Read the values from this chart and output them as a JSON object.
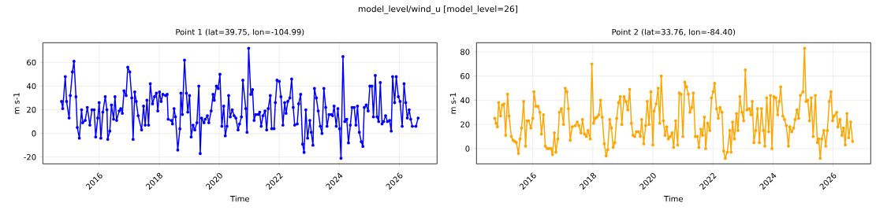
{
  "chart_data": [
    {
      "type": "line",
      "title": "Point 1 (lat=39.75, lon=-104.99)",
      "xlabel": "Time",
      "ylabel": "m s-1",
      "annotations": [
        "model_level/wind_u [model_level=26]"
      ],
      "grid": true,
      "marker": "circle",
      "line_style": "solid",
      "xlim": [
        "2014-02-15",
        "2027-04-05"
      ],
      "xticks": [
        "2016",
        "2018",
        "2020",
        "2022",
        "2024",
        "2026"
      ],
      "ylim": [
        -25.7,
        76.7
      ],
      "yticks": [
        -20,
        0,
        20,
        40,
        60
      ],
      "x": [
        "2014-10-01",
        "2014-10-15",
        "2014-11-15",
        "2014-12-01",
        "2015-01-01",
        "2015-01-15",
        "2015-02-10",
        "2015-03-01",
        "2015-03-25",
        "2015-04-10",
        "2015-05-05",
        "2015-06-01",
        "2015-06-15",
        "2015-07-15",
        "2015-08-10",
        "2015-09-10",
        "2015-10-05",
        "2015-11-01",
        "2015-11-20",
        "2015-12-15",
        "2016-01-01",
        "2016-01-22",
        "2016-02-15",
        "2016-03-15",
        "2016-04-05",
        "2016-04-15",
        "2016-05-10",
        "2016-05-30",
        "2016-06-25",
        "2016-07-12",
        "2016-08-01",
        "2016-09-01",
        "2016-09-20",
        "2016-10-10",
        "2016-10-30",
        "2016-11-25",
        "2016-12-15",
        "2017-01-08",
        "2017-02-02",
        "2017-02-18",
        "2017-03-10",
        "2017-03-28",
        "2017-04-20",
        "2017-06-01",
        "2017-06-25",
        "2017-07-15",
        "2017-08-05",
        "2017-08-25",
        "2017-09-15",
        "2017-10-12",
        "2017-11-05",
        "2017-11-28",
        "2017-12-15",
        "2018-01-05",
        "2018-01-25",
        "2018-02-15",
        "2018-03-20",
        "2018-04-08",
        "2018-04-20",
        "2018-05-28",
        "2018-06-12",
        "2018-07-01",
        "2018-07-18",
        "2018-08-15",
        "2018-09-10",
        "2018-09-22",
        "2018-10-10",
        "2018-11-05",
        "2018-11-28",
        "2018-12-15",
        "2019-01-05",
        "2019-01-25",
        "2019-02-17",
        "2019-03-10",
        "2019-04-05",
        "2019-04-28",
        "2019-05-15",
        "2019-06-01",
        "2019-06-30",
        "2019-07-15",
        "2019-08-10",
        "2019-08-28",
        "2019-09-25",
        "2019-10-18",
        "2019-11-02",
        "2019-11-28",
        "2019-12-20",
        "2020-01-10",
        "2020-02-02",
        "2020-02-25",
        "2020-03-15",
        "2020-04-05",
        "2020-04-25",
        "2020-05-15",
        "2020-06-08",
        "2020-07-01",
        "2020-07-22",
        "2020-08-18",
        "2020-09-05",
        "2020-09-28",
        "2020-10-15",
        "2020-11-20",
        "2020-12-05",
        "2020-12-25",
        "2021-01-20",
        "2021-02-10",
        "2021-03-01",
        "2021-03-20",
        "2021-04-20",
        "2021-05-08",
        "2021-05-26",
        "2021-06-18",
        "2021-07-12",
        "2021-08-01",
        "2021-08-20",
        "2021-09-14",
        "2021-10-01",
        "2021-10-30",
        "2021-11-15",
        "2021-12-05",
        "2022-01-01",
        "2022-01-22",
        "2022-02-15",
        "2022-03-08",
        "2022-03-25",
        "2022-04-15",
        "2022-05-10",
        "2022-06-01",
        "2022-06-20",
        "2022-07-08",
        "2022-08-08",
        "2022-08-25",
        "2022-09-18",
        "2022-10-12",
        "2022-10-30",
        "2022-11-20",
        "2022-12-12",
        "2023-01-08",
        "2023-01-25",
        "2023-02-15",
        "2023-03-05",
        "2023-03-28",
        "2023-04-20",
        "2023-05-15",
        "2023-06-05",
        "2023-06-28",
        "2023-07-20",
        "2023-08-05",
        "2023-08-30",
        "2023-09-25",
        "2023-10-12",
        "2023-10-30",
        "2023-11-25",
        "2023-12-15",
        "2024-01-05",
        "2024-01-22",
        "2024-02-15",
        "2024-03-08",
        "2024-04-01",
        "2024-04-22",
        "2024-05-15",
        "2024-06-05",
        "2024-07-01",
        "2024-07-22",
        "2024-08-10",
        "2024-09-01",
        "2024-09-25",
        "2024-10-15",
        "2024-11-01",
        "2024-11-25",
        "2024-12-18",
        "2025-01-08",
        "2025-02-02",
        "2025-02-20",
        "2025-03-15",
        "2025-04-05",
        "2025-04-25",
        "2025-05-15",
        "2025-06-05",
        "2025-06-25",
        "2025-07-18",
        "2025-08-10",
        "2025-09-05",
        "2025-09-25",
        "2025-10-12",
        "2025-11-05",
        "2025-11-25",
        "2025-12-20",
        "2026-01-10",
        "2026-02-05",
        "2026-02-28",
        "2026-03-20",
        "2026-04-08",
        "2026-05-01",
        "2026-05-20",
        "2026-06-08",
        "2026-07-22",
        "2026-08-18"
      ],
      "series": [
        {
          "color": "#0000ff",
          "values": [
            27,
            21,
            48,
            27,
            13,
            32,
            52,
            61,
            31,
            5,
            -4,
            20,
            9,
            11,
            22,
            7,
            20,
            20,
            -3,
            13,
            26,
            -4,
            18,
            31,
            20,
            -5,
            2,
            24,
            12,
            31,
            11,
            19,
            21,
            17,
            36,
            32,
            56,
            52,
            30,
            -5,
            35,
            27,
            15,
            3,
            23,
            7,
            28,
            7,
            42,
            25,
            31,
            34,
            19,
            35,
            27,
            33,
            32,
            33,
            12,
            11,
            8,
            21,
            14,
            -14,
            4,
            34,
            16,
            62,
            34,
            18,
            32,
            -3,
            7,
            3,
            9,
            40,
            -17,
            13,
            9,
            12,
            15,
            9,
            19,
            33,
            28,
            40,
            38,
            50,
            6,
            23,
            -2,
            6,
            32,
            14,
            20,
            15,
            13,
            3,
            8,
            14,
            45,
            21,
            1,
            72,
            33,
            37,
            11,
            16,
            16,
            18,
            6,
            15,
            19,
            3,
            21,
            32,
            4,
            4,
            26,
            45,
            44,
            31,
            7,
            26,
            17,
            27,
            30,
            46,
            22,
            7,
            8,
            25,
            33,
            -9,
            -16,
            20,
            -4,
            11,
            1,
            -10,
            38,
            30,
            19,
            6,
            0,
            38,
            22,
            6,
            16,
            16,
            15,
            23,
            6,
            21,
            4,
            -21,
            65,
            10,
            12,
            -8,
            7,
            22,
            22,
            7,
            23,
            1,
            -7,
            -11,
            22,
            24,
            19,
            40,
            40,
            14,
            49,
            14,
            10,
            43,
            8,
            10,
            15,
            10,
            11,
            2,
            48,
            26,
            48,
            31,
            27,
            6,
            42,
            26,
            13,
            20,
            12,
            6,
            6,
            13
          ]
        }
      ]
    },
    {
      "type": "line",
      "title": "Point 2 (lat=33.76, lon=-84.40)",
      "xlabel": "Time",
      "ylabel": "m s-1",
      "grid": true,
      "marker": "circle",
      "line_style": "solid",
      "xlim": [
        "2014-02-15",
        "2027-04-05"
      ],
      "xticks": [
        "2016",
        "2018",
        "2020",
        "2022",
        "2024",
        "2026"
      ],
      "ylim": [
        -12.6,
        87.6
      ],
      "yticks": [
        0,
        20,
        40,
        60,
        80
      ],
      "x": [
        "2014-09-25",
        "2014-10-12",
        "2014-10-28",
        "2014-11-12",
        "2014-12-05",
        "2014-12-25",
        "2015-01-15",
        "2015-02-05",
        "2015-02-28",
        "2015-03-18",
        "2015-04-15",
        "2015-05-05",
        "2015-05-25",
        "2015-06-15",
        "2015-07-10",
        "2015-07-30",
        "2015-08-18",
        "2015-09-12",
        "2015-10-05",
        "2015-10-22",
        "2015-11-12",
        "2015-12-08",
        "2016-01-01",
        "2016-01-15",
        "2016-02-08",
        "2016-03-05",
        "2016-03-28",
        "2016-04-15",
        "2016-05-10",
        "2016-06-01",
        "2016-06-25",
        "2016-07-15",
        "2016-08-10",
        "2016-08-28",
        "2016-09-20",
        "2016-10-08",
        "2016-11-02",
        "2016-11-20",
        "2016-12-15",
        "2017-01-10",
        "2017-01-30",
        "2017-02-20",
        "2017-03-10",
        "2017-04-01",
        "2017-04-25",
        "2017-06-01",
        "2017-06-25",
        "2017-07-15",
        "2017-08-10",
        "2017-08-28",
        "2017-09-22",
        "2017-10-15",
        "2017-11-02",
        "2017-12-01",
        "2017-12-20",
        "2018-01-10",
        "2018-01-30",
        "2018-02-20",
        "2018-03-15",
        "2018-04-05",
        "2018-04-25",
        "2018-05-20",
        "2018-06-12",
        "2018-07-01",
        "2018-07-25",
        "2018-08-15",
        "2018-09-05",
        "2018-09-25",
        "2018-10-18",
        "2018-11-10",
        "2018-12-01",
        "2018-12-20",
        "2019-01-15",
        "2019-02-08",
        "2019-03-02",
        "2019-03-25",
        "2019-04-15",
        "2019-05-05",
        "2019-05-25",
        "2019-06-15",
        "2019-07-10",
        "2019-08-02",
        "2019-08-18",
        "2019-09-12",
        "2019-10-05",
        "2019-10-25",
        "2019-11-15",
        "2019-12-08",
        "2020-01-01",
        "2020-01-15",
        "2020-02-10",
        "2020-03-05",
        "2020-03-25",
        "2020-04-12",
        "2020-05-08",
        "2020-05-28",
        "2020-06-18",
        "2020-07-08",
        "2020-07-30",
        "2020-08-22",
        "2020-09-10",
        "2020-10-05",
        "2020-10-30",
        "2020-11-18",
        "2020-12-10",
        "2021-01-01",
        "2021-01-25",
        "2021-02-15",
        "2021-03-08",
        "2021-03-28",
        "2021-04-20",
        "2021-05-08",
        "2021-06-02",
        "2021-06-25",
        "2021-07-15",
        "2021-08-08",
        "2021-08-28",
        "2021-09-20",
        "2021-10-05",
        "2021-10-30",
        "2021-11-25",
        "2021-12-15",
        "2022-01-05",
        "2022-01-22",
        "2022-02-15",
        "2022-03-08",
        "2022-03-28",
        "2022-04-22",
        "2022-05-12",
        "2022-06-01",
        "2022-06-25",
        "2022-07-25",
        "2022-08-10",
        "2022-08-28",
        "2022-09-20",
        "2022-10-15",
        "2022-11-02",
        "2022-11-25",
        "2022-12-20",
        "2023-01-10",
        "2023-01-30",
        "2023-02-20",
        "2023-03-18",
        "2023-04-10",
        "2023-04-25",
        "2023-05-15",
        "2023-06-05",
        "2023-06-28",
        "2023-07-20",
        "2023-08-15",
        "2023-09-08",
        "2023-09-25",
        "2023-10-18",
        "2023-11-10",
        "2023-12-02",
        "2023-12-20",
        "2024-01-12",
        "2024-02-05",
        "2024-02-28",
        "2024-03-18",
        "2024-04-05",
        "2024-05-01",
        "2024-05-22",
        "2024-06-12",
        "2024-07-08",
        "2024-07-25",
        "2024-08-18",
        "2024-09-10",
        "2024-09-28",
        "2024-10-20",
        "2024-11-10",
        "2024-12-01",
        "2025-01-01",
        "2025-01-20",
        "2025-02-08",
        "2025-03-01",
        "2025-03-22",
        "2025-04-12",
        "2025-05-05",
        "2025-06-01",
        "2025-06-25",
        "2025-07-12",
        "2025-07-30",
        "2025-08-18",
        "2025-09-12",
        "2025-10-05",
        "2025-10-25",
        "2025-11-18",
        "2025-12-08",
        "2025-12-28",
        "2026-01-15",
        "2026-02-15",
        "2026-03-02",
        "2026-03-28",
        "2026-04-20",
        "2026-05-10",
        "2026-05-30",
        "2026-06-20",
        "2026-07-12",
        "2026-08-05",
        "2026-08-28"
      ],
      "series": [
        {
          "color": "#ffa500",
          "values": [
            25,
            21,
            18,
            38,
            27,
            36,
            37,
            11,
            45,
            27,
            10,
            7,
            6,
            5,
            -4,
            8,
            17,
            39,
            2,
            23,
            23,
            17,
            25,
            47,
            35,
            35,
            30,
            12,
            28,
            2,
            0,
            0,
            0,
            -5,
            13,
            -3,
            8,
            30,
            33,
            20,
            50,
            47,
            33,
            7,
            18,
            19,
            22,
            19,
            13,
            24,
            12,
            10,
            15,
            8,
            70,
            21,
            25,
            26,
            28,
            40,
            26,
            4,
            -6,
            -1,
            24,
            17,
            1,
            5,
            25,
            38,
            43,
            20,
            43,
            39,
            32,
            49,
            21,
            11,
            10,
            14,
            14,
            10,
            24,
            4,
            19,
            39,
            20,
            47,
            3,
            31,
            37,
            50,
            21,
            60,
            23,
            11,
            18,
            8,
            10,
            13,
            1,
            23,
            3,
            46,
            45,
            10,
            55,
            51,
            45,
            30,
            34,
            46,
            10,
            10,
            1,
            16,
            11,
            26,
            0,
            21,
            15,
            42,
            47,
            54,
            33,
            25,
            34,
            30,
            -2,
            -8,
            -3,
            15,
            -3,
            22,
            8,
            29,
            15,
            43,
            30,
            23,
            65,
            32,
            33,
            28,
            39,
            5,
            15,
            33,
            5,
            33,
            15,
            2,
            42,
            14,
            44,
            0,
            43,
            42,
            28,
            39,
            51,
            27,
            24,
            19,
            2,
            18,
            14,
            17,
            24,
            32,
            25,
            44,
            47,
            83,
            39,
            40,
            23,
            42,
            10,
            44,
            5,
            8,
            -8,
            8,
            15,
            2,
            15,
            39,
            47,
            23,
            27,
            30,
            18,
            24,
            11,
            17,
            3,
            29,
            9,
            22,
            6
          ]
        }
      ]
    }
  ]
}
